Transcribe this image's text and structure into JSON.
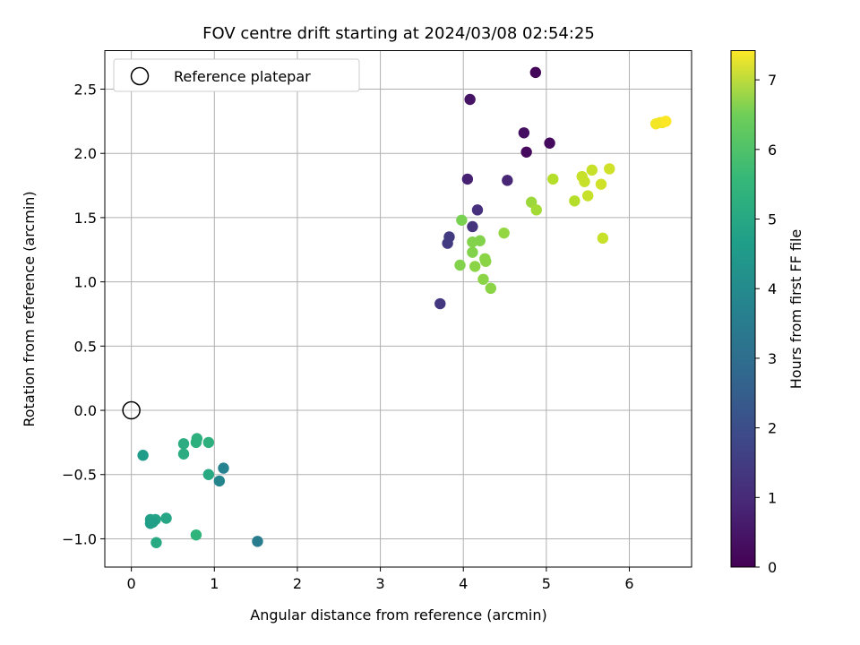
{
  "chart_data": {
    "type": "scatter",
    "title": "FOV centre drift starting at 2024/03/08 02:54:25",
    "xlabel": "Angular distance from reference (arcmin)",
    "ylabel": "Rotation from reference (arcmin)",
    "xlim": [
      -0.32,
      6.75
    ],
    "ylim": [
      -1.22,
      2.8
    ],
    "xticks": [
      0,
      1,
      2,
      3,
      4,
      5,
      6
    ],
    "yticks": [
      -1.0,
      -0.5,
      0.0,
      0.5,
      1.0,
      1.5,
      2.0,
      2.5
    ],
    "grid": true,
    "legend": {
      "placement": "top-left",
      "entries": [
        "Reference platepar"
      ]
    },
    "reference_point": {
      "x": 0.0,
      "y": 0.0
    },
    "colorbar": {
      "label": "Hours from first FF file",
      "min": 0,
      "max": 7.42,
      "ticks": [
        0,
        1,
        2,
        3,
        4,
        5,
        6,
        7
      ],
      "colormap": "viridis"
    },
    "points": [
      {
        "x": 4.87,
        "y": 2.63,
        "c": 0.1
      },
      {
        "x": 4.08,
        "y": 2.42,
        "c": 0.4
      },
      {
        "x": 4.73,
        "y": 2.16,
        "c": 0.3
      },
      {
        "x": 4.76,
        "y": 2.01,
        "c": 0.2
      },
      {
        "x": 5.04,
        "y": 2.08,
        "c": 0.2
      },
      {
        "x": 4.05,
        "y": 1.8,
        "c": 0.7
      },
      {
        "x": 4.53,
        "y": 1.79,
        "c": 0.8
      },
      {
        "x": 4.17,
        "y": 1.56,
        "c": 1.0
      },
      {
        "x": 4.11,
        "y": 1.43,
        "c": 1.1
      },
      {
        "x": 3.83,
        "y": 1.35,
        "c": 1.3
      },
      {
        "x": 3.81,
        "y": 1.3,
        "c": 1.3
      },
      {
        "x": 3.72,
        "y": 0.83,
        "c": 1.2
      },
      {
        "x": 1.52,
        "y": -1.02,
        "c": 3.1
      },
      {
        "x": 1.11,
        "y": -0.45,
        "c": 3.3
      },
      {
        "x": 1.06,
        "y": -0.55,
        "c": 3.4
      },
      {
        "x": 0.14,
        "y": -0.35,
        "c": 4.1
      },
      {
        "x": 0.93,
        "y": -0.5,
        "c": 4.5
      },
      {
        "x": 0.63,
        "y": -0.26,
        "c": 4.6
      },
      {
        "x": 0.63,
        "y": -0.34,
        "c": 4.6
      },
      {
        "x": 0.78,
        "y": -0.25,
        "c": 4.7
      },
      {
        "x": 0.79,
        "y": -0.22,
        "c": 4.7
      },
      {
        "x": 0.93,
        "y": -0.25,
        "c": 4.7
      },
      {
        "x": 0.78,
        "y": -0.97,
        "c": 4.8
      },
      {
        "x": 0.42,
        "y": -0.84,
        "c": 4.4
      },
      {
        "x": 0.23,
        "y": -0.85,
        "c": 4.2
      },
      {
        "x": 0.29,
        "y": -0.85,
        "c": 4.3
      },
      {
        "x": 0.23,
        "y": -0.88,
        "c": 4.1
      },
      {
        "x": 0.26,
        "y": -0.87,
        "c": 4.2
      },
      {
        "x": 0.3,
        "y": -1.03,
        "c": 4.5
      },
      {
        "x": 3.98,
        "y": 1.48,
        "c": 5.9
      },
      {
        "x": 4.11,
        "y": 1.31,
        "c": 6.0
      },
      {
        "x": 4.2,
        "y": 1.32,
        "c": 6.0
      },
      {
        "x": 4.11,
        "y": 1.23,
        "c": 6.0
      },
      {
        "x": 4.26,
        "y": 1.18,
        "c": 6.1
      },
      {
        "x": 4.27,
        "y": 1.16,
        "c": 6.1
      },
      {
        "x": 3.96,
        "y": 1.13,
        "c": 6.0
      },
      {
        "x": 4.14,
        "y": 1.12,
        "c": 6.1
      },
      {
        "x": 4.24,
        "y": 1.02,
        "c": 6.1
      },
      {
        "x": 4.33,
        "y": 0.95,
        "c": 6.1
      },
      {
        "x": 4.49,
        "y": 1.38,
        "c": 6.2
      },
      {
        "x": 4.82,
        "y": 1.62,
        "c": 6.3
      },
      {
        "x": 4.88,
        "y": 1.56,
        "c": 6.4
      },
      {
        "x": 5.08,
        "y": 1.8,
        "c": 6.6
      },
      {
        "x": 5.34,
        "y": 1.63,
        "c": 6.6
      },
      {
        "x": 5.43,
        "y": 1.82,
        "c": 6.8
      },
      {
        "x": 5.46,
        "y": 1.78,
        "c": 6.8
      },
      {
        "x": 5.5,
        "y": 1.67,
        "c": 6.8
      },
      {
        "x": 5.55,
        "y": 1.87,
        "c": 6.8
      },
      {
        "x": 5.66,
        "y": 1.76,
        "c": 6.9
      },
      {
        "x": 5.68,
        "y": 1.34,
        "c": 6.8
      },
      {
        "x": 5.76,
        "y": 1.88,
        "c": 6.9
      },
      {
        "x": 6.32,
        "y": 2.23,
        "c": 7.3
      },
      {
        "x": 6.37,
        "y": 2.24,
        "c": 7.3
      },
      {
        "x": 6.4,
        "y": 2.24,
        "c": 7.3
      },
      {
        "x": 6.44,
        "y": 2.25,
        "c": 7.4
      }
    ]
  }
}
